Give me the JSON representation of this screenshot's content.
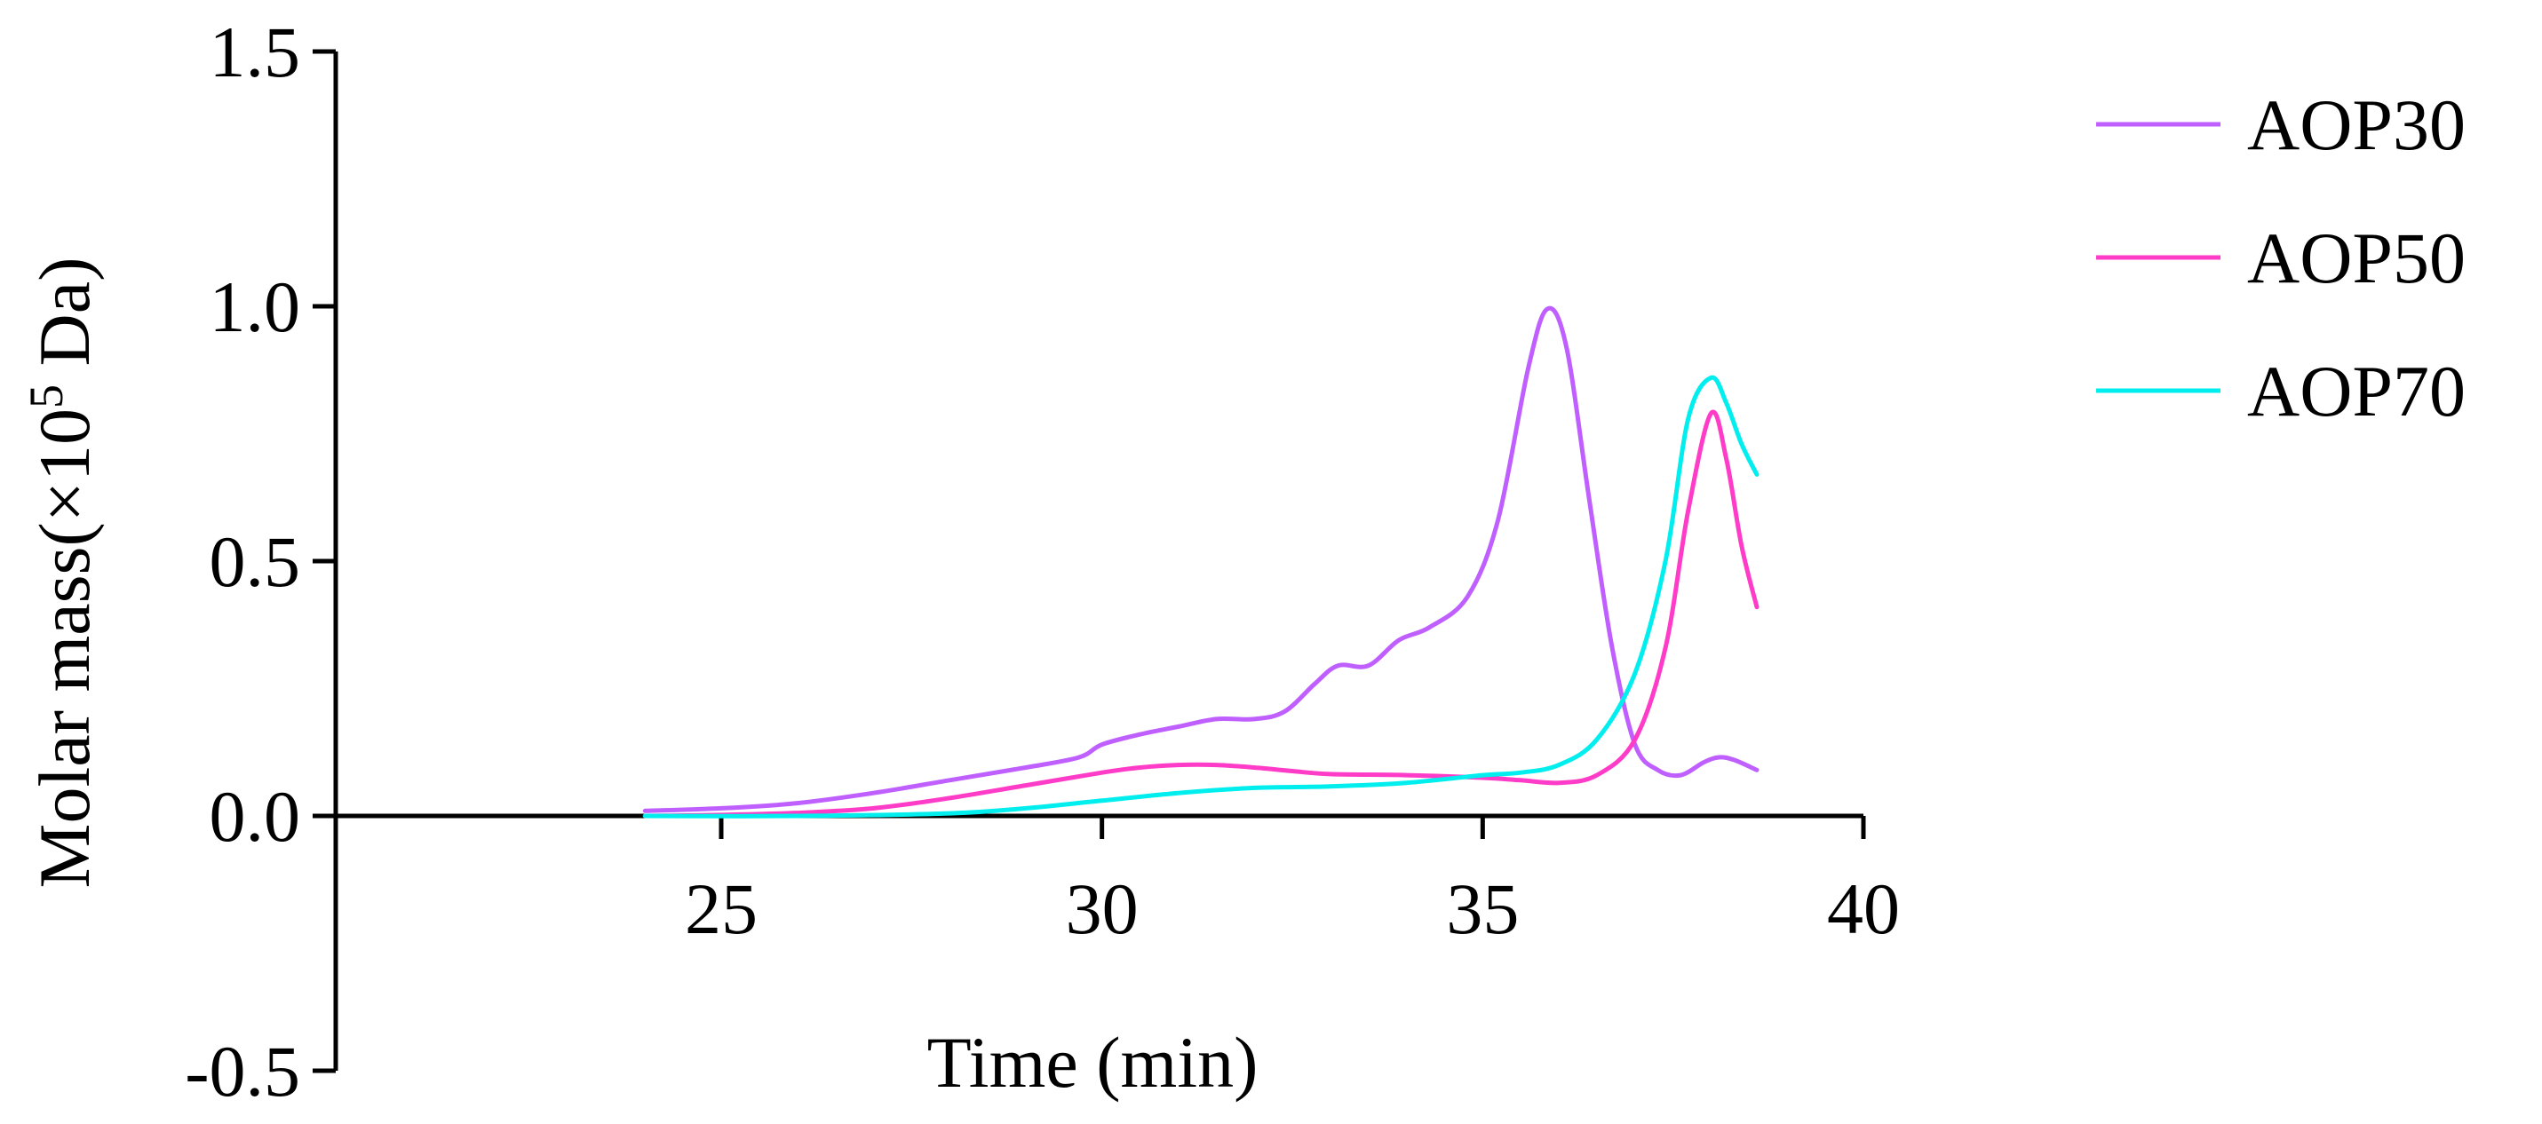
{
  "chart_data": {
    "type": "line",
    "xlabel": "Time (min)",
    "ylabel": {
      "prefix": "Molar mass(×10",
      "superscript": "5",
      "suffix": " Da)"
    },
    "xlim": [
      20,
      40
    ],
    "ylim": [
      -0.5,
      1.5
    ],
    "x_ticks": [
      25,
      30,
      35,
      40
    ],
    "x_tick_labels": [
      "25",
      "30",
      "35",
      "40"
    ],
    "y_ticks": [
      -0.5,
      0.0,
      0.5,
      1.0,
      1.5
    ],
    "y_tick_labels": [
      "-0.5",
      "0.0",
      "0.5",
      "1.0",
      "1.5"
    ],
    "legend_position": "top-right",
    "series": [
      {
        "name": "AOP30",
        "color": "#bf5fff",
        "x": [
          24.0,
          25.0,
          26.0,
          27.0,
          28.0,
          29.0,
          29.7,
          30.0,
          30.5,
          31.0,
          31.5,
          32.0,
          32.4,
          32.8,
          33.1,
          33.5,
          33.9,
          34.3,
          34.8,
          35.2,
          35.6,
          35.85,
          36.1,
          36.4,
          36.7,
          37.0,
          37.3,
          37.6,
          37.9,
          38.1,
          38.3,
          38.6
        ],
        "values": [
          0.01,
          0.015,
          0.025,
          0.045,
          0.07,
          0.095,
          0.115,
          0.14,
          0.16,
          0.175,
          0.19,
          0.19,
          0.205,
          0.26,
          0.295,
          0.295,
          0.345,
          0.37,
          0.43,
          0.58,
          0.88,
          0.995,
          0.92,
          0.62,
          0.33,
          0.14,
          0.09,
          0.08,
          0.105,
          0.115,
          0.11,
          0.09
        ]
      },
      {
        "name": "AOP50",
        "color": "#ff3cc8",
        "x": [
          24.0,
          25.0,
          26.0,
          27.0,
          28.0,
          29.0,
          30.0,
          30.5,
          31.0,
          31.5,
          32.0,
          32.5,
          33.0,
          34.0,
          35.0,
          35.5,
          36.0,
          36.5,
          37.0,
          37.4,
          37.7,
          38.0,
          38.2,
          38.4,
          38.6
        ],
        "values": [
          0.0,
          0.002,
          0.006,
          0.015,
          0.035,
          0.06,
          0.085,
          0.095,
          0.1,
          0.1,
          0.095,
          0.088,
          0.082,
          0.08,
          0.075,
          0.07,
          0.065,
          0.08,
          0.15,
          0.33,
          0.6,
          0.79,
          0.7,
          0.53,
          0.41
        ]
      },
      {
        "name": "AOP70",
        "color": "#00eeee",
        "x": [
          24.0,
          26.0,
          28.0,
          29.0,
          30.0,
          31.0,
          32.0,
          33.0,
          34.0,
          35.0,
          35.5,
          36.0,
          36.5,
          37.0,
          37.4,
          37.7,
          38.0,
          38.2,
          38.4,
          38.6
        ],
        "values": [
          0.0,
          0.0,
          0.005,
          0.015,
          0.03,
          0.045,
          0.055,
          0.058,
          0.065,
          0.08,
          0.085,
          0.1,
          0.15,
          0.28,
          0.5,
          0.78,
          0.86,
          0.81,
          0.73,
          0.67
        ]
      }
    ]
  }
}
